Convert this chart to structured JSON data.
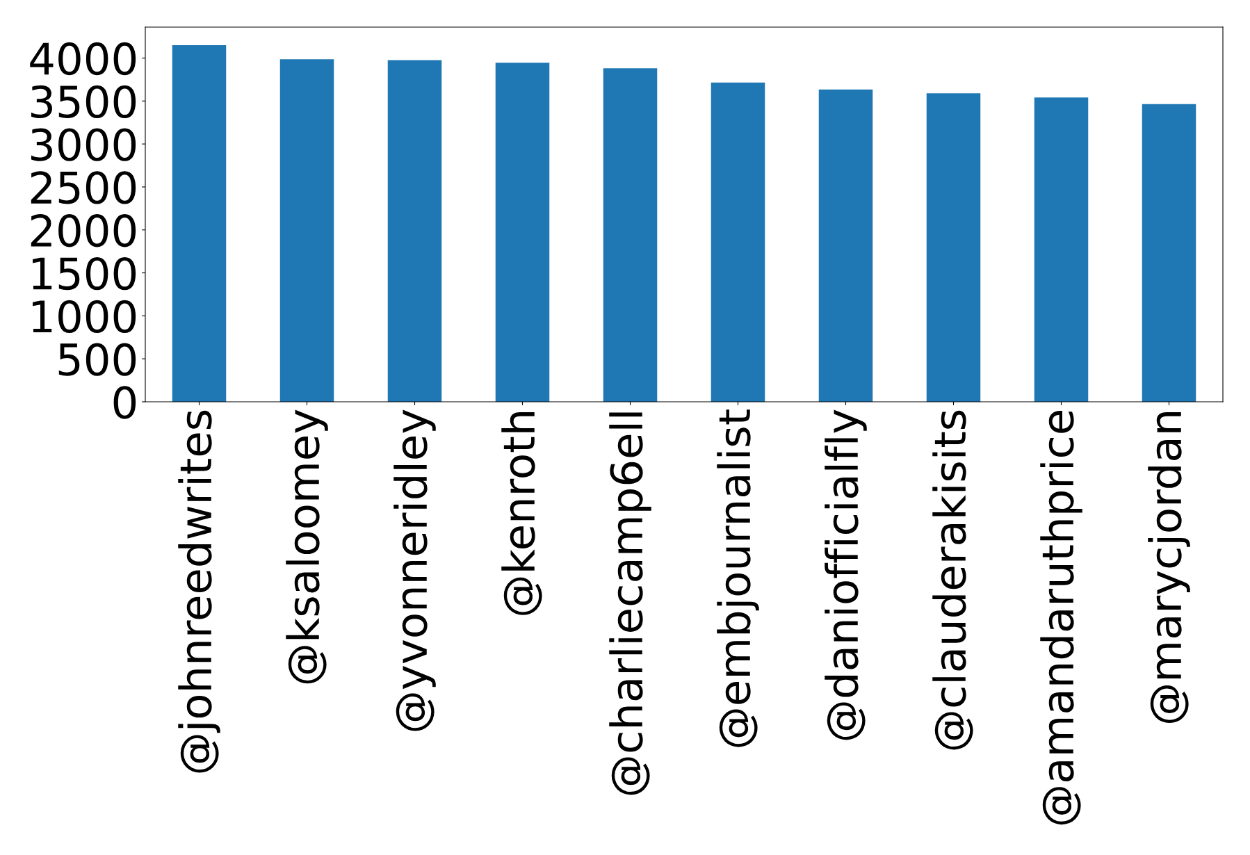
{
  "chart_data": {
    "type": "bar",
    "categories": [
      "@johnreedwrites",
      "@ksaloomey",
      "@yvonneridley",
      "@kenroth",
      "@charliecamp6ell",
      "@embjournalist",
      "@daniofficialfly",
      "@clauderakisits",
      "@amandaruthprice",
      "@marycjordan"
    ],
    "values": [
      4150,
      3985,
      3975,
      3945,
      3880,
      3715,
      3635,
      3590,
      3540,
      3465
    ],
    "color": "#1f77b4",
    "ylim": [
      0,
      4360
    ],
    "yticks": [
      0,
      500,
      1000,
      1500,
      2000,
      2500,
      3000,
      3500,
      4000
    ],
    "grid": false,
    "legend": false
  }
}
